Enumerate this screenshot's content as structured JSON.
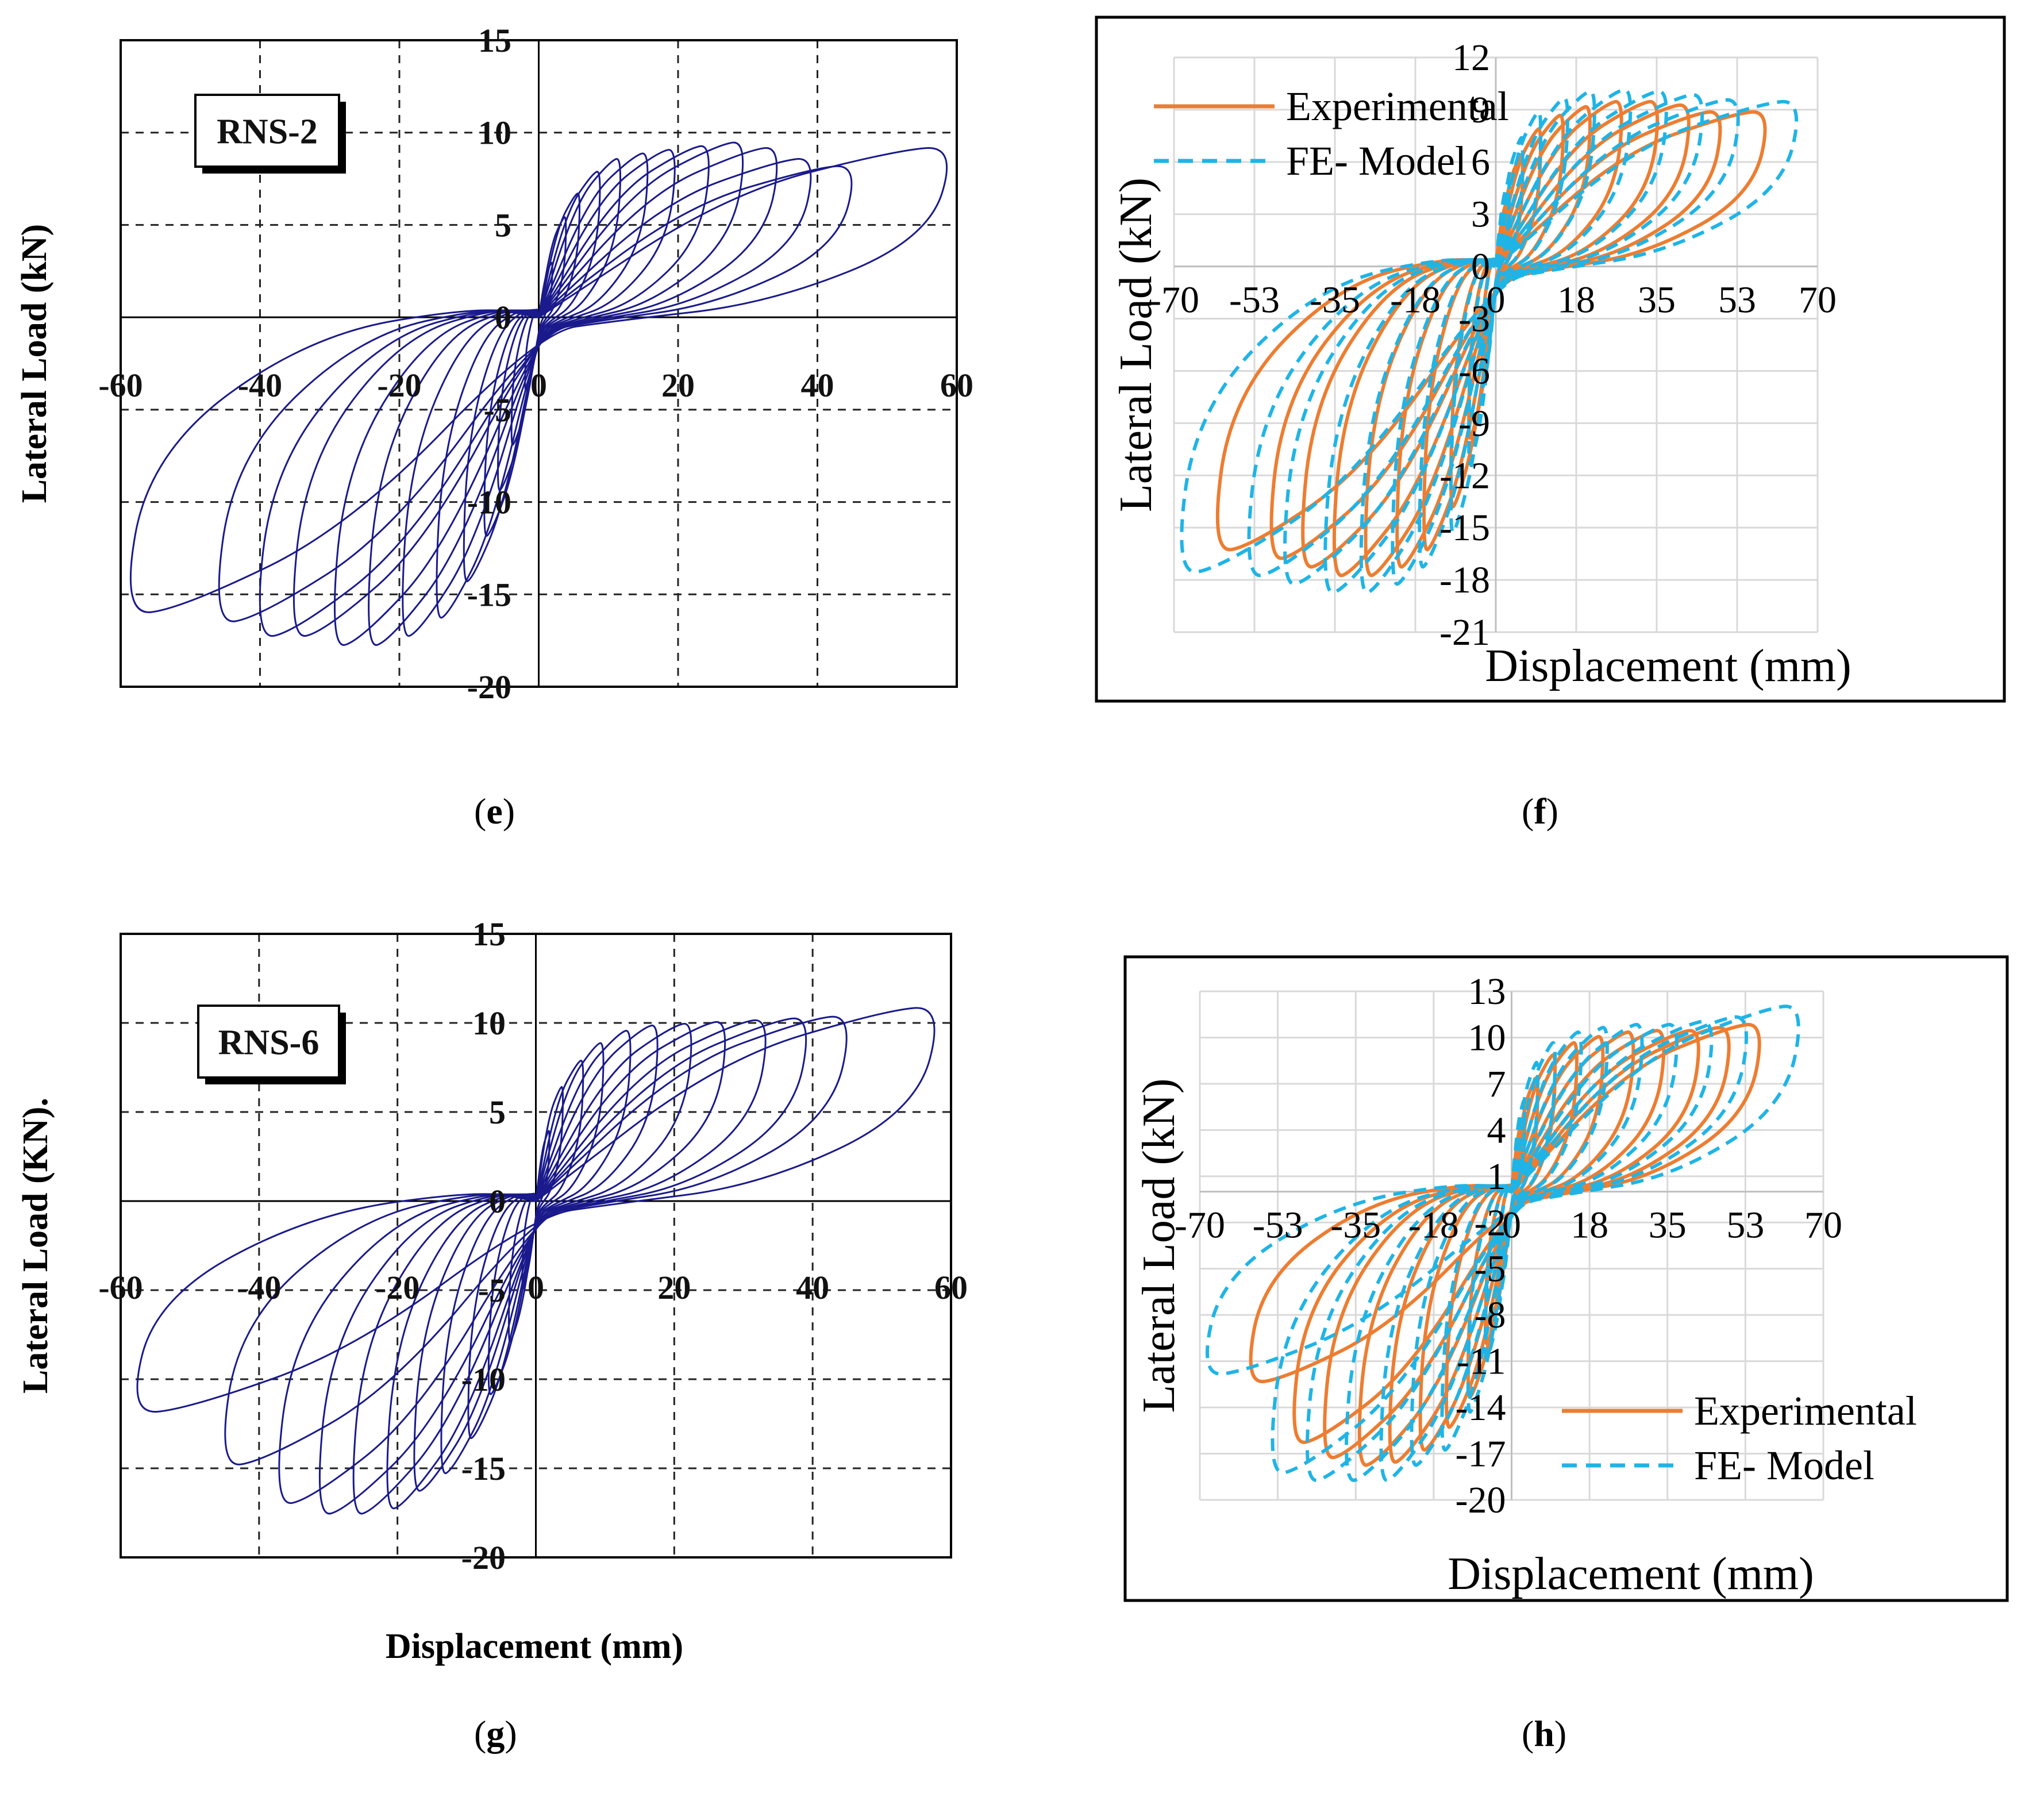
{
  "figure": {
    "captions": [
      "(e)",
      "(f)",
      "(g)",
      "(h)"
    ],
    "caption_letters": [
      "e",
      "f",
      "g",
      "h"
    ]
  },
  "colors": {
    "navy": "#1a1a8c",
    "experimental": "#ed7d31",
    "fe_model": "#1fb4e6",
    "grid_light": "#d9d9d9",
    "axis": "#000000"
  },
  "chart_data": [
    {
      "id": "e",
      "type": "line",
      "style": "hysteresis",
      "label_box": "RNS-2",
      "xlabel": "",
      "ylabel": "Lateral Load (kN)",
      "xlim": [
        -60,
        60
      ],
      "ylim": [
        -20,
        15
      ],
      "x_ticks": [
        -60,
        -40,
        -20,
        0,
        20,
        40,
        60
      ],
      "y_ticks": [
        15,
        10,
        5,
        0,
        -5,
        -10,
        -15,
        -20
      ],
      "x_tick_labels": [
        "-60",
        "-40",
        "-20",
        "0",
        "20",
        "40",
        "60"
      ],
      "y_tick_labels": [
        "15",
        "10",
        "5",
        "0",
        "-5",
        "-10",
        "-15",
        "-20"
      ],
      "grid": "dashed",
      "series": [
        {
          "name": "RNS-2",
          "color": "#1a1a8c",
          "loops": [
            {
              "d_pos": 2,
              "f_pos": 3.0,
              "d_neg": -2,
              "f_neg": -4.0
            },
            {
              "d_pos": 4,
              "f_pos": 5.5,
              "d_neg": -4,
              "f_neg": -7.0
            },
            {
              "d_pos": 6,
              "f_pos": 6.8,
              "d_neg": -6,
              "f_neg": -9.5
            },
            {
              "d_pos": 9,
              "f_pos": 8.0,
              "d_neg": -8,
              "f_neg": -12.0
            },
            {
              "d_pos": 12,
              "f_pos": 8.7,
              "d_neg": -11,
              "f_neg": -14.5
            },
            {
              "d_pos": 16,
              "f_pos": 9.0,
              "d_neg": -15,
              "f_neg": -16.5
            },
            {
              "d_pos": 20,
              "f_pos": 9.2,
              "d_neg": -20,
              "f_neg": -17.5
            },
            {
              "d_pos": 25,
              "f_pos": 9.4,
              "d_neg": -25,
              "f_neg": -18.0
            },
            {
              "d_pos": 30,
              "f_pos": 9.6,
              "d_neg": -30,
              "f_neg": -18.0
            },
            {
              "d_pos": 35,
              "f_pos": 9.3,
              "d_neg": -36,
              "f_neg": -17.5
            },
            {
              "d_pos": 40,
              "f_pos": 8.7,
              "d_neg": -41,
              "f_neg": -17.5
            },
            {
              "d_pos": 46,
              "f_pos": 8.3,
              "d_neg": -47,
              "f_neg": -16.7
            },
            {
              "d_pos": 60,
              "f_pos": 9.3,
              "d_neg": -60,
              "f_neg": -16.2
            }
          ]
        }
      ]
    },
    {
      "id": "f",
      "type": "line",
      "style": "hysteresis",
      "label_box": "",
      "xlabel": "Displacement (mm)",
      "ylabel": "Lateral Load (kN)",
      "xlim": [
        -70,
        70
      ],
      "ylim": [
        -21,
        12
      ],
      "x_ticks": [
        -70,
        -53,
        -35,
        -18,
        0,
        18,
        35,
        53,
        70
      ],
      "y_ticks": [
        12,
        9,
        6,
        3,
        0,
        -3,
        -6,
        -9,
        -12,
        -15,
        -18,
        -21
      ],
      "x_tick_labels": [
        "-70",
        "-53",
        "-35",
        "-18",
        "0",
        "18",
        "35",
        "53",
        "70"
      ],
      "y_tick_labels": [
        "12",
        "9",
        "6",
        "3",
        "0",
        "-3",
        "-6",
        "-9",
        "-12",
        "-15",
        "-18",
        "-21"
      ],
      "grid": "solid",
      "legend": {
        "position": "top-left",
        "entries": [
          "Experimental",
          "FE- Model"
        ]
      },
      "series": [
        {
          "name": "Experimental",
          "color": "#ed7d31",
          "loops": [
            {
              "d_pos": 3,
              "f_pos": 4.0,
              "d_neg": -3,
              "f_neg": -6.0
            },
            {
              "d_pos": 6,
              "f_pos": 6.5,
              "d_neg": -6,
              "f_neg": -10.0
            },
            {
              "d_pos": 10,
              "f_pos": 8.0,
              "d_neg": -10,
              "f_neg": -14.0
            },
            {
              "d_pos": 15,
              "f_pos": 8.8,
              "d_neg": -16,
              "f_neg": -16.5
            },
            {
              "d_pos": 21,
              "f_pos": 9.3,
              "d_neg": -22,
              "f_neg": -17.5
            },
            {
              "d_pos": 28,
              "f_pos": 9.6,
              "d_neg": -29,
              "f_neg": -18.0
            },
            {
              "d_pos": 36,
              "f_pos": 9.6,
              "d_neg": -36,
              "f_neg": -18.0
            },
            {
              "d_pos": 43,
              "f_pos": 9.4,
              "d_neg": -43,
              "f_neg": -17.5
            },
            {
              "d_pos": 50,
              "f_pos": 9.0,
              "d_neg": -50,
              "f_neg": -17.0
            },
            {
              "d_pos": 60,
              "f_pos": 9.0,
              "d_neg": -62,
              "f_neg": -16.5
            }
          ]
        },
        {
          "name": "FE- Model",
          "color": "#1fb4e6",
          "loops": [
            {
              "d_pos": 3,
              "f_pos": 5.0,
              "d_neg": -3,
              "f_neg": -7.0
            },
            {
              "d_pos": 6,
              "f_pos": 7.5,
              "d_neg": -6,
              "f_neg": -11.5
            },
            {
              "d_pos": 10,
              "f_pos": 9.0,
              "d_neg": -10,
              "f_neg": -15.5
            },
            {
              "d_pos": 16,
              "f_pos": 9.8,
              "d_neg": -17,
              "f_neg": -17.5
            },
            {
              "d_pos": 22,
              "f_pos": 10.2,
              "d_neg": -23,
              "f_neg": -18.5
            },
            {
              "d_pos": 30,
              "f_pos": 10.3,
              "d_neg": -30,
              "f_neg": -19.0
            },
            {
              "d_pos": 38,
              "f_pos": 10.2,
              "d_neg": -38,
              "f_neg": -19.0
            },
            {
              "d_pos": 46,
              "f_pos": 10.0,
              "d_neg": -47,
              "f_neg": -18.5
            },
            {
              "d_pos": 54,
              "f_pos": 9.7,
              "d_neg": -55,
              "f_neg": -18.0
            },
            {
              "d_pos": 67,
              "f_pos": 9.6,
              "d_neg": -70,
              "f_neg": -17.8
            }
          ]
        }
      ]
    },
    {
      "id": "g",
      "type": "line",
      "style": "hysteresis",
      "label_box": "RNS-6",
      "xlabel": "Displacement (mm)",
      "ylabel": "Lateral Load (KN).",
      "xlim": [
        -60,
        60
      ],
      "ylim": [
        -20,
        15
      ],
      "x_ticks": [
        -60,
        -40,
        -20,
        0,
        20,
        40,
        60
      ],
      "y_ticks": [
        15,
        10,
        5,
        0,
        -5,
        -10,
        -15,
        -20
      ],
      "x_tick_labels": [
        "-60",
        "-40",
        "-20",
        "0",
        "20",
        "40",
        "60"
      ],
      "y_tick_labels": [
        "15",
        "10",
        "5",
        "0",
        "-5",
        "-10",
        "-15",
        "-20"
      ],
      "grid": "dashed",
      "series": [
        {
          "name": "RNS-6",
          "color": "#1a1a8c",
          "loops": [
            {
              "d_pos": 2,
              "f_pos": 4.0,
              "d_neg": -2,
              "f_neg": -5.0
            },
            {
              "d_pos": 4,
              "f_pos": 6.5,
              "d_neg": -4,
              "f_neg": -8.0
            },
            {
              "d_pos": 7,
              "f_pos": 8.0,
              "d_neg": -7,
              "f_neg": -11.0
            },
            {
              "d_pos": 10,
              "f_pos": 9.0,
              "d_neg": -10,
              "f_neg": -13.5
            },
            {
              "d_pos": 14,
              "f_pos": 9.7,
              "d_neg": -14,
              "f_neg": -15.5
            },
            {
              "d_pos": 18,
              "f_pos": 10.0,
              "d_neg": -18,
              "f_neg": -16.5
            },
            {
              "d_pos": 23,
              "f_pos": 10.1,
              "d_neg": -22,
              "f_neg": -17.5
            },
            {
              "d_pos": 28,
              "f_pos": 10.2,
              "d_neg": -27,
              "f_neg": -17.8
            },
            {
              "d_pos": 34,
              "f_pos": 10.3,
              "d_neg": -32,
              "f_neg": -17.8
            },
            {
              "d_pos": 40,
              "f_pos": 10.4,
              "d_neg": -38,
              "f_neg": -17.2
            },
            {
              "d_pos": 46,
              "f_pos": 10.5,
              "d_neg": -46,
              "f_neg": -15.0
            },
            {
              "d_pos": 59,
              "f_pos": 11.0,
              "d_neg": -59,
              "f_neg": -12.0
            }
          ]
        }
      ]
    },
    {
      "id": "h",
      "type": "line",
      "style": "hysteresis",
      "label_box": "",
      "xlabel": "Displacement (mm)",
      "ylabel": "Lateral Load (kN)",
      "xlim": [
        -70,
        70
      ],
      "ylim": [
        -20,
        13
      ],
      "x_ticks": [
        -70,
        -53,
        -35,
        -18,
        0,
        18,
        35,
        53,
        70
      ],
      "y_ticks": [
        13,
        10,
        7,
        4,
        1,
        -2,
        -5,
        -8,
        -11,
        -14,
        -17,
        -20
      ],
      "x_tick_labels": [
        "-70",
        "-53",
        "-35",
        "-18",
        "0",
        "18",
        "35",
        "53",
        "70"
      ],
      "y_tick_labels": [
        "13",
        "10",
        "7",
        "4",
        "1",
        "-2",
        "-5",
        "-8",
        "-11",
        "-14",
        "-17",
        "-20"
      ],
      "grid": "solid",
      "legend": {
        "position": "bottom-right",
        "entries": [
          "Experimental",
          "FE- Model"
        ]
      },
      "series": [
        {
          "name": "Experimental",
          "color": "#ed7d31",
          "loops": [
            {
              "d_pos": 3,
              "f_pos": 5.0,
              "d_neg": -3,
              "f_neg": -6.0
            },
            {
              "d_pos": 6,
              "f_pos": 7.5,
              "d_neg": -6,
              "f_neg": -10.0
            },
            {
              "d_pos": 10,
              "f_pos": 9.0,
              "d_neg": -10,
              "f_neg": -13.5
            },
            {
              "d_pos": 15,
              "f_pos": 9.8,
              "d_neg": -15,
              "f_neg": -15.5
            },
            {
              "d_pos": 21,
              "f_pos": 10.2,
              "d_neg": -21,
              "f_neg": -17.0
            },
            {
              "d_pos": 28,
              "f_pos": 10.5,
              "d_neg": -28,
              "f_neg": -17.8
            },
            {
              "d_pos": 35,
              "f_pos": 10.6,
              "d_neg": -35,
              "f_neg": -18.0
            },
            {
              "d_pos": 43,
              "f_pos": 10.6,
              "d_neg": -43,
              "f_neg": -17.5
            },
            {
              "d_pos": 50,
              "f_pos": 10.8,
              "d_neg": -50,
              "f_neg": -16.5
            },
            {
              "d_pos": 57,
              "f_pos": 11.0,
              "d_neg": -60,
              "f_neg": -12.5
            }
          ]
        },
        {
          "name": "FE- Model",
          "color": "#1fb4e6",
          "loops": [
            {
              "d_pos": 3,
              "f_pos": 6.0,
              "d_neg": -3,
              "f_neg": -7.0
            },
            {
              "d_pos": 6,
              "f_pos": 8.5,
              "d_neg": -6,
              "f_neg": -11.0
            },
            {
              "d_pos": 10,
              "f_pos": 9.8,
              "d_neg": -10,
              "f_neg": -14.5
            },
            {
              "d_pos": 16,
              "f_pos": 10.5,
              "d_neg": -16,
              "f_neg": -17.0
            },
            {
              "d_pos": 22,
              "f_pos": 10.8,
              "d_neg": -23,
              "f_neg": -18.0
            },
            {
              "d_pos": 30,
              "f_pos": 11.0,
              "d_neg": -30,
              "f_neg": -19.0
            },
            {
              "d_pos": 38,
              "f_pos": 11.0,
              "d_neg": -38,
              "f_neg": -19.0
            },
            {
              "d_pos": 46,
              "f_pos": 11.2,
              "d_neg": -47,
              "f_neg": -19.0
            },
            {
              "d_pos": 54,
              "f_pos": 11.5,
              "d_neg": -55,
              "f_neg": -18.5
            },
            {
              "d_pos": 66,
              "f_pos": 12.2,
              "d_neg": -70,
              "f_neg": -12.0
            }
          ]
        }
      ]
    }
  ]
}
